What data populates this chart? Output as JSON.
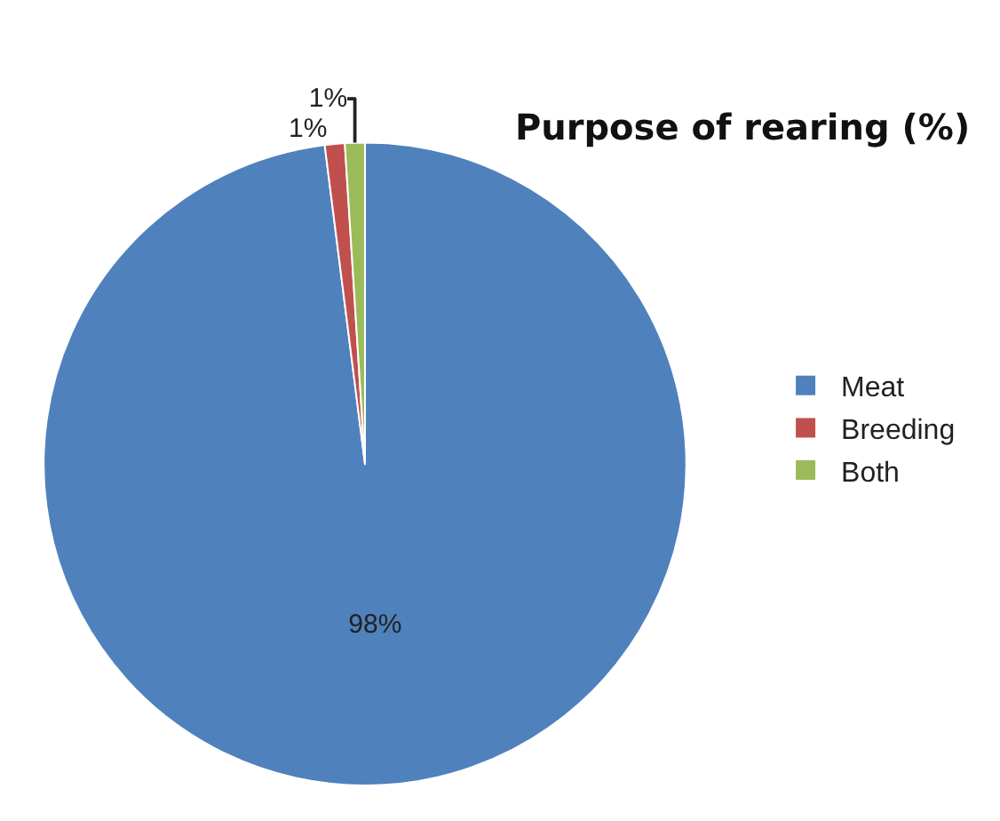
{
  "chart_data": {
    "type": "pie",
    "title": "Purpose of rearing (%)",
    "categories": [
      "Meat",
      "Breeding",
      "Both"
    ],
    "values": [
      98,
      1,
      1
    ],
    "colors": [
      "#4f81bd",
      "#c0504d",
      "#9bbb59"
    ],
    "value_labels": [
      "98%",
      "1%",
      "1%"
    ],
    "legend": "right"
  }
}
